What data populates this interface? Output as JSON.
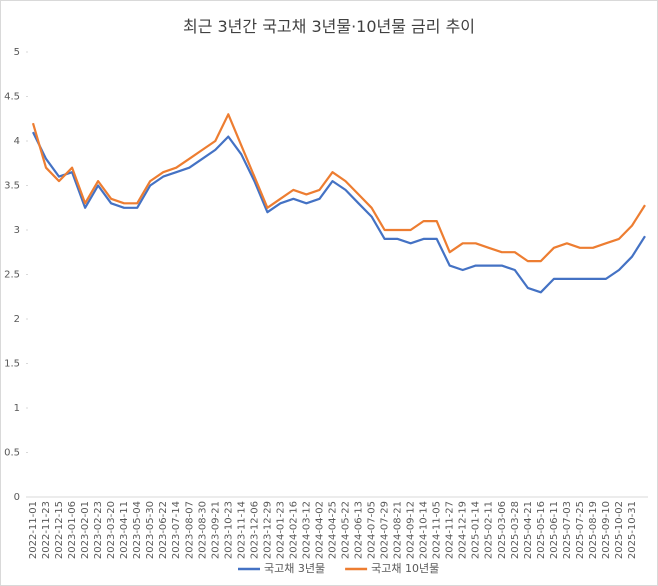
{
  "chart_data": {
    "type": "line",
    "title": "최근 3년간 국고채 3년물·10년물 금리 추이",
    "categories": [
      "2022-11-01",
      "2022-11-23",
      "2022-12-15",
      "2023-01-06",
      "2023-02-01",
      "2023-02-23",
      "2023-03-20",
      "2023-04-11",
      "2023-05-04",
      "2023-05-30",
      "2023-06-22",
      "2023-07-14",
      "2023-08-07",
      "2023-08-30",
      "2023-09-21",
      "2023-10-23",
      "2023-11-14",
      "2023-12-06",
      "2023-12-29",
      "2024-01-23",
      "2024-02-16",
      "2024-03-12",
      "2024-04-02",
      "2024-04-25",
      "2024-05-22",
      "2024-06-13",
      "2024-07-05",
      "2024-07-29",
      "2024-08-21",
      "2024-09-12",
      "2024-10-14",
      "2024-11-05",
      "2024-11-27",
      "2024-12-19",
      "2025-01-14",
      "2025-02-11",
      "2025-03-06",
      "2025-03-28",
      "2025-04-21",
      "2025-05-16",
      "2025-06-11",
      "2025-07-03",
      "2025-07-25",
      "2025-08-19",
      "2025-09-10",
      "2025-10-02",
      "2025-10-31",
      null
    ],
    "series": [
      {
        "name": "국고채 3년물",
        "color": "#4472c4",
        "values": [
          4.1,
          3.8,
          3.6,
          3.65,
          3.25,
          3.5,
          3.3,
          3.25,
          3.25,
          3.5,
          3.6,
          3.65,
          3.7,
          3.8,
          3.9,
          4.05,
          3.85,
          3.55,
          3.2,
          3.3,
          3.35,
          3.3,
          3.35,
          3.55,
          3.45,
          3.3,
          3.15,
          2.9,
          2.9,
          2.85,
          2.9,
          2.9,
          2.6,
          2.55,
          2.6,
          2.6,
          2.6,
          2.55,
          2.35,
          2.3,
          2.45,
          2.45,
          2.45,
          2.45,
          2.45,
          2.55,
          2.7,
          2.93
        ]
      },
      {
        "name": "국고채 10년물",
        "color": "#ed7d31",
        "values": [
          4.2,
          3.7,
          3.55,
          3.7,
          3.3,
          3.55,
          3.35,
          3.3,
          3.3,
          3.55,
          3.65,
          3.7,
          3.8,
          3.9,
          4.0,
          4.3,
          3.95,
          3.6,
          3.25,
          3.35,
          3.45,
          3.4,
          3.45,
          3.65,
          3.55,
          3.4,
          3.25,
          3.0,
          3.0,
          3.0,
          3.1,
          3.1,
          2.75,
          2.85,
          2.85,
          2.8,
          2.75,
          2.75,
          2.65,
          2.65,
          2.8,
          2.85,
          2.8,
          2.8,
          2.85,
          2.9,
          3.05,
          3.28
        ]
      }
    ],
    "ylim": [
      0,
      5
    ],
    "yticks": [
      0,
      0.5,
      1,
      1.5,
      2,
      2.5,
      3,
      3.5,
      4,
      4.5,
      5
    ],
    "legend": "bottom"
  }
}
